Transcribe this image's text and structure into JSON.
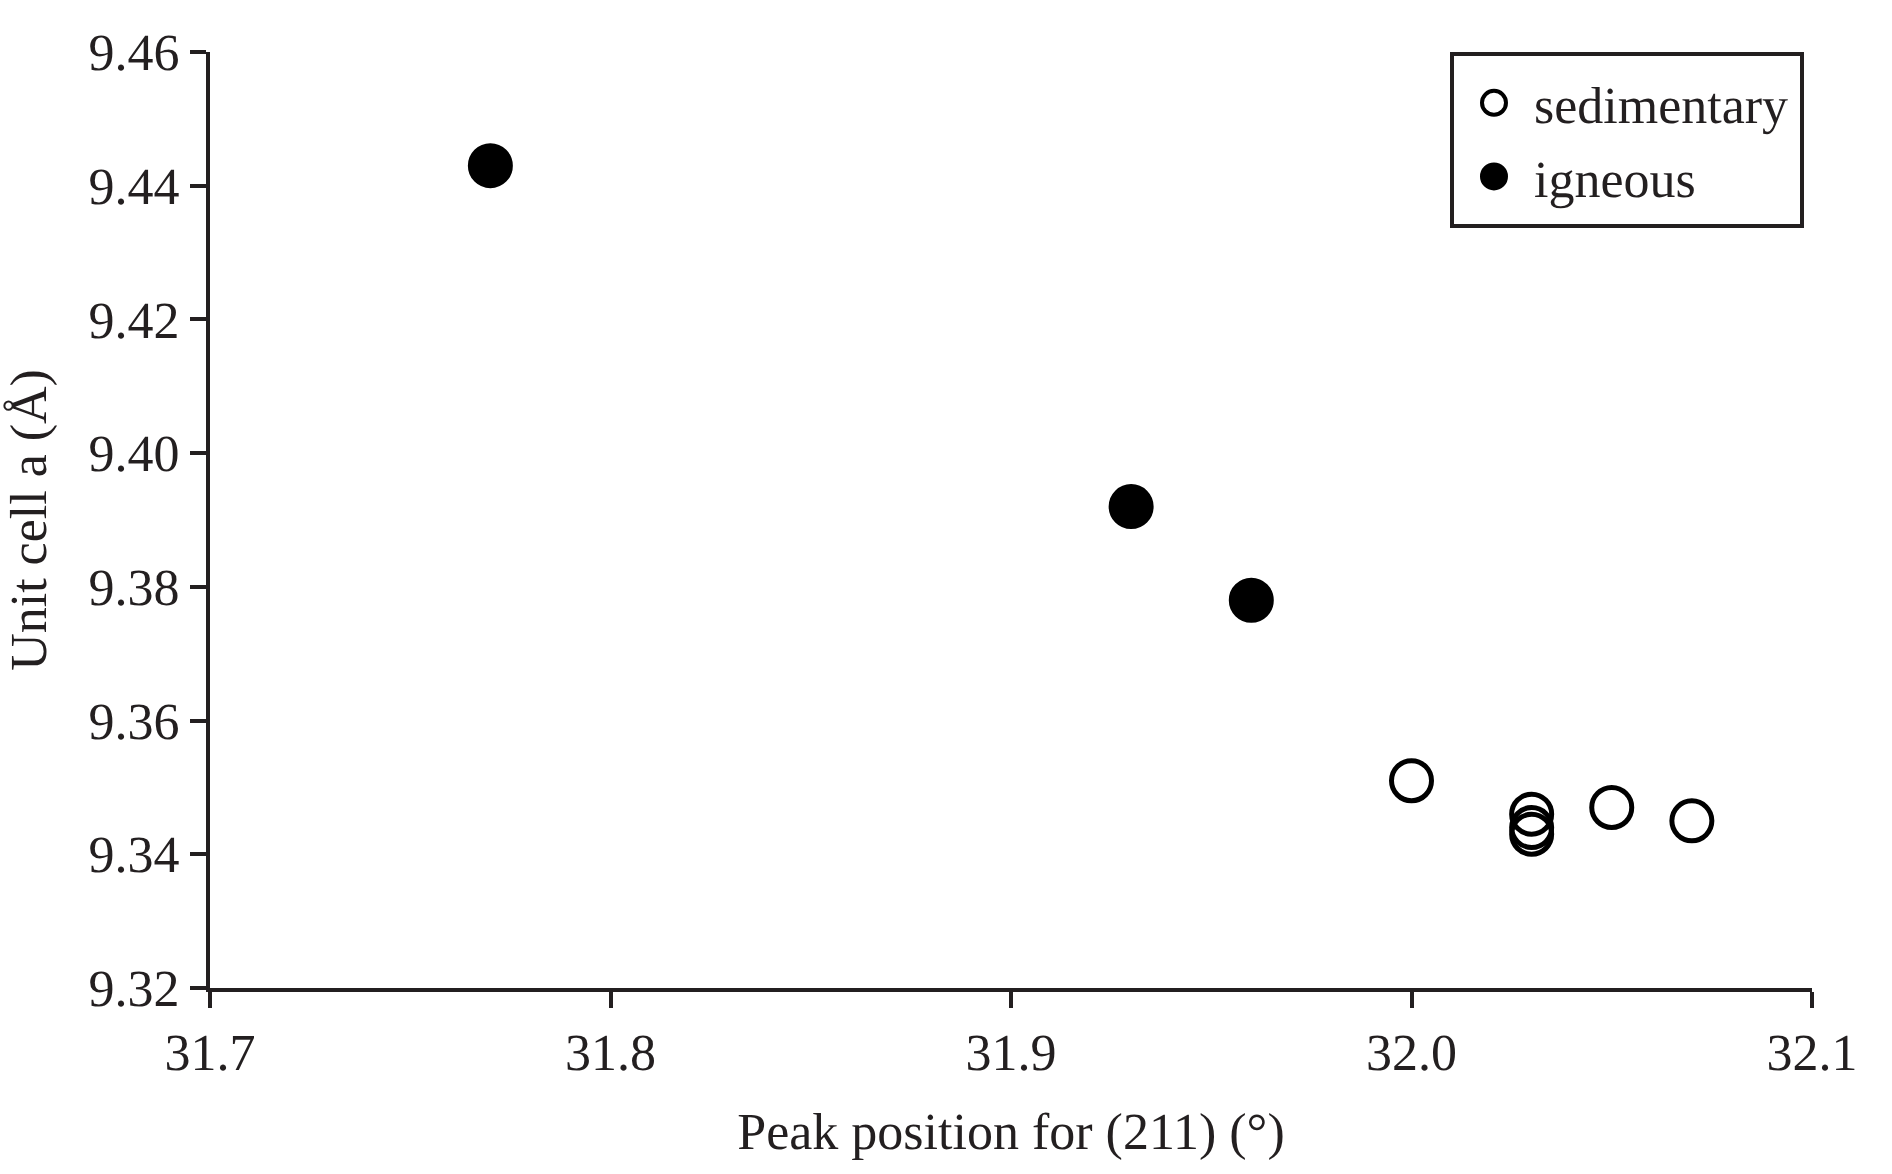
{
  "chart_data": {
    "type": "scatter",
    "xlabel": "Peak position for (211) (°)",
    "ylabel": "Unit cell a (Å)",
    "series": [
      {
        "name": "sedimentary",
        "color": "#000000",
        "marker": "circle-open",
        "x": [
          32.0,
          32.03,
          32.03,
          32.03,
          32.05,
          32.07
        ],
        "values": [
          9.351,
          9.346,
          9.344,
          9.343,
          9.347,
          9.345
        ]
      },
      {
        "name": "igneous",
        "color": "#000000",
        "marker": "circle",
        "x": [
          31.77,
          31.93,
          31.96
        ],
        "values": [
          9.443,
          9.392,
          9.378
        ]
      }
    ],
    "xlim": [
      31.7,
      32.1
    ],
    "xticks": [
      31.7,
      31.8,
      31.9,
      {
        "value": 32.0,
        "label": "32.0"
      },
      32.1
    ],
    "ylim": [
      9.32,
      9.46
    ],
    "yticks": [
      {
        "value": 9.32,
        "label": "9.32"
      },
      {
        "value": 9.34,
        "label": "9.34"
      },
      {
        "value": 9.36,
        "label": "9.36"
      },
      {
        "value": 9.38,
        "label": "9.38"
      },
      {
        "value": 9.4,
        "label": "9.40"
      },
      {
        "value": 9.42,
        "label": "9.42"
      },
      {
        "value": 9.44,
        "label": "9.44"
      },
      {
        "value": 9.46,
        "label": "9.46"
      }
    ],
    "legend": "top right"
  }
}
